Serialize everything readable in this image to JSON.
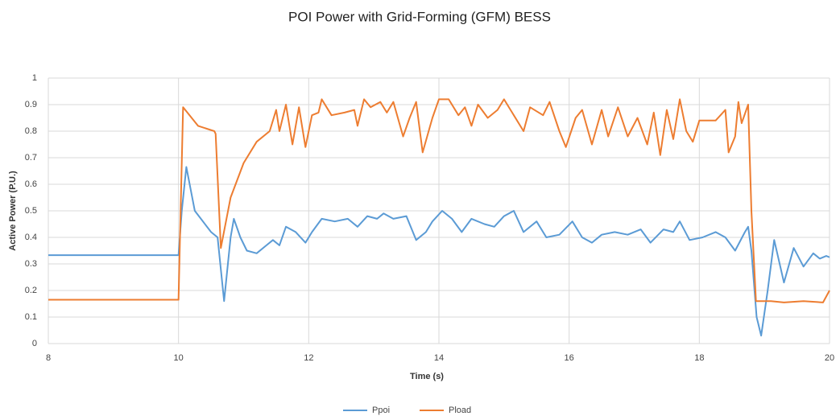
{
  "chart_data": {
    "type": "line",
    "title": "POI Power with Grid-Forming (GFM) BESS",
    "x_label": "Time (s)",
    "y_label": "Active Power (P.U.)",
    "xlim": [
      8,
      20
    ],
    "xticks": [
      8,
      10,
      12,
      14,
      16,
      18,
      20
    ],
    "ylim": [
      0,
      1
    ],
    "yticks": [
      0,
      0.1,
      0.2,
      0.3,
      0.4,
      0.5,
      0.6,
      0.7,
      0.8,
      0.9,
      1
    ],
    "grid": true,
    "legend": "bottom",
    "series": [
      {
        "name": "Ppoi",
        "color": "#5b9bd5",
        "x": [
          8,
          10.0,
          10.05,
          10.12,
          10.25,
          10.5,
          10.6,
          10.7,
          10.8,
          10.85,
          10.95,
          11.05,
          11.2,
          11.35,
          11.45,
          11.55,
          11.65,
          11.8,
          11.95,
          12.05,
          12.2,
          12.4,
          12.6,
          12.75,
          12.9,
          13.05,
          13.15,
          13.3,
          13.5,
          13.65,
          13.8,
          13.9,
          14.05,
          14.2,
          14.35,
          14.5,
          14.7,
          14.85,
          15.0,
          15.15,
          15.3,
          15.5,
          15.65,
          15.85,
          16.05,
          16.2,
          16.35,
          16.5,
          16.7,
          16.9,
          17.1,
          17.25,
          17.45,
          17.6,
          17.7,
          17.85,
          18.05,
          18.25,
          18.4,
          18.55,
          18.7,
          18.75,
          18.8,
          18.88,
          18.95,
          19.05,
          19.15,
          19.3,
          19.45,
          19.6,
          19.75,
          19.85,
          19.95,
          20
        ],
        "values": [
          0.333,
          0.333,
          0.5,
          0.665,
          0.5,
          0.42,
          0.4,
          0.16,
          0.4,
          0.47,
          0.4,
          0.35,
          0.34,
          0.37,
          0.39,
          0.37,
          0.44,
          0.42,
          0.38,
          0.42,
          0.47,
          0.46,
          0.47,
          0.44,
          0.48,
          0.47,
          0.49,
          0.47,
          0.48,
          0.39,
          0.42,
          0.46,
          0.5,
          0.47,
          0.42,
          0.47,
          0.45,
          0.44,
          0.48,
          0.5,
          0.42,
          0.46,
          0.4,
          0.41,
          0.46,
          0.4,
          0.38,
          0.41,
          0.42,
          0.41,
          0.43,
          0.38,
          0.43,
          0.42,
          0.46,
          0.39,
          0.4,
          0.42,
          0.4,
          0.35,
          0.42,
          0.44,
          0.35,
          0.1,
          0.03,
          0.2,
          0.39,
          0.23,
          0.36,
          0.29,
          0.34,
          0.32,
          0.33,
          0.325
        ]
      },
      {
        "name": "Pload",
        "color": "#ed7d31",
        "x": [
          8,
          10.0,
          10.07,
          10.3,
          10.55,
          10.57,
          10.65,
          10.8,
          11.0,
          11.2,
          11.4,
          11.5,
          11.55,
          11.65,
          11.75,
          11.85,
          11.95,
          12.05,
          12.15,
          12.2,
          12.35,
          12.55,
          12.7,
          12.75,
          12.85,
          12.95,
          13.1,
          13.2,
          13.3,
          13.45,
          13.55,
          13.65,
          13.75,
          13.9,
          14.0,
          14.15,
          14.3,
          14.4,
          14.5,
          14.6,
          14.75,
          14.9,
          15.0,
          15.15,
          15.3,
          15.4,
          15.6,
          15.7,
          15.85,
          15.95,
          16.1,
          16.2,
          16.35,
          16.5,
          16.6,
          16.75,
          16.9,
          17.05,
          17.2,
          17.3,
          17.4,
          17.5,
          17.6,
          17.7,
          17.8,
          17.9,
          18.0,
          18.25,
          18.4,
          18.45,
          18.55,
          18.6,
          18.65,
          18.75,
          18.8,
          18.87,
          19.1,
          19.3,
          19.6,
          19.9,
          20
        ],
        "values": [
          0.165,
          0.165,
          0.89,
          0.82,
          0.8,
          0.79,
          0.36,
          0.55,
          0.68,
          0.76,
          0.8,
          0.88,
          0.8,
          0.9,
          0.75,
          0.89,
          0.74,
          0.86,
          0.87,
          0.92,
          0.86,
          0.87,
          0.88,
          0.82,
          0.92,
          0.89,
          0.91,
          0.87,
          0.91,
          0.78,
          0.85,
          0.91,
          0.72,
          0.85,
          0.92,
          0.92,
          0.86,
          0.89,
          0.82,
          0.9,
          0.85,
          0.88,
          0.92,
          0.86,
          0.8,
          0.89,
          0.86,
          0.91,
          0.8,
          0.74,
          0.85,
          0.88,
          0.75,
          0.88,
          0.78,
          0.89,
          0.78,
          0.85,
          0.75,
          0.87,
          0.71,
          0.88,
          0.77,
          0.92,
          0.8,
          0.76,
          0.84,
          0.84,
          0.88,
          0.72,
          0.78,
          0.91,
          0.83,
          0.9,
          0.5,
          0.16,
          0.16,
          0.155,
          0.16,
          0.155,
          0.2
        ]
      }
    ]
  }
}
